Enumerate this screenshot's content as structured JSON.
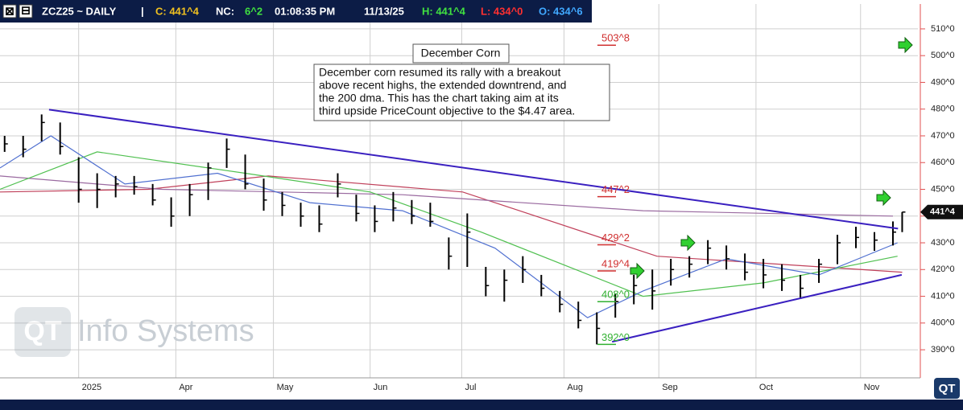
{
  "chart_data": {
    "type": "ohlc",
    "header": [
      {
        "text": "ZCZ25 ~ DAILY",
        "color": "#ffffff"
      },
      {
        "text": "|",
        "color": "#ffffff"
      },
      {
        "text": "C: 441^4",
        "color": "#f0c020"
      },
      {
        "text": "NC:",
        "color": "#ffffff"
      },
      {
        "text": "6^2",
        "color": "#40e040"
      },
      {
        "text": "01:08:35 PM",
        "color": "#ffffff"
      },
      {
        "text": "11/13/25",
        "color": "#ffffff"
      },
      {
        "text": "H: 441^4",
        "color": "#40e040"
      },
      {
        "text": "L: 434^0",
        "color": "#ff3030"
      },
      {
        "text": "O: 434^6",
        "color": "#40a8ff"
      }
    ],
    "annotation": {
      "title": "December Corn",
      "lines": [
        "December corn resumed its rally with a breakout",
        "above recent highs, the extended downtrend, and",
        "the 200 dma.  This has the chart taking aim at its",
        "third upside PriceCount objective to the $4.47 area."
      ]
    },
    "watermark": "Info Systems",
    "x": [
      -16,
      -12,
      -8,
      -4,
      0,
      4,
      8,
      12,
      16,
      20,
      24,
      28,
      32,
      36,
      40,
      44,
      48,
      52,
      56,
      60,
      64,
      68,
      72,
      76,
      80,
      84,
      88,
      92,
      96,
      100,
      104,
      108,
      112,
      116,
      120,
      124,
      128,
      132,
      136,
      140,
      144,
      148,
      152,
      156,
      160,
      164,
      168,
      172,
      176,
      178
    ],
    "high": [
      470,
      470,
      478,
      475,
      462,
      456,
      455,
      455,
      452,
      447,
      452,
      460,
      469,
      463,
      454,
      449,
      445,
      444,
      456,
      448,
      444,
      449,
      446,
      445,
      432,
      441,
      421,
      420,
      425,
      418,
      412,
      408,
      404,
      411,
      418,
      420,
      424,
      425,
      431,
      429,
      426,
      424,
      422,
      418,
      424,
      433,
      436,
      434,
      438,
      441.5
    ],
    "low": [
      464,
      462,
      468,
      463,
      445,
      443,
      447,
      448,
      444,
      436,
      440,
      446,
      458,
      450,
      442,
      440,
      436,
      434,
      447,
      438,
      434,
      438,
      437,
      436,
      420,
      421,
      410,
      408,
      415,
      410,
      404,
      398,
      392,
      402,
      407,
      405,
      414,
      417,
      422,
      420,
      416,
      413,
      412,
      409,
      415,
      422,
      428,
      427,
      429,
      434
    ],
    "close": [
      467,
      465,
      475,
      466,
      450,
      450,
      452,
      451,
      446,
      440,
      448,
      458,
      465,
      452,
      446,
      444,
      440,
      437,
      452,
      441,
      438,
      443,
      440,
      438,
      425,
      434,
      414,
      416,
      420,
      413,
      407,
      401,
      398,
      408,
      414,
      412,
      420,
      422,
      428,
      424,
      419,
      418,
      416,
      413,
      422,
      430,
      432,
      431,
      434,
      441.5
    ],
    "bar_color": "#000000",
    "averages": [
      {
        "color": "#c0405a",
        "x": [
          -17,
          15,
          41,
          83,
          125,
          178
        ],
        "values": [
          449,
          450,
          455,
          449,
          425,
          419
        ]
      },
      {
        "color": "#9a6aa0",
        "x": [
          -17,
          18,
          70,
          122,
          176
        ],
        "values": [
          455,
          450,
          448,
          442,
          440
        ]
      },
      {
        "color": "#50c050",
        "x": [
          -17,
          4,
          36,
          63,
          87,
          122,
          148,
          177
        ],
        "values": [
          450,
          464,
          456,
          449,
          434,
          410,
          415,
          425
        ]
      },
      {
        "color": "#5070d0",
        "x": [
          -17,
          -6,
          10,
          30,
          50,
          70,
          90,
          110,
          122,
          140,
          160,
          177
        ],
        "values": [
          458,
          470,
          452,
          456,
          445,
          442,
          428,
          402,
          412,
          424,
          418,
          430
        ]
      }
    ],
    "trendlines": [
      {
        "color": "#3a20c0",
        "x": [
          -6.4,
          177.1
        ],
        "values": [
          479.8,
          435.3
        ]
      },
      {
        "color": "#3a20c0",
        "x": [
          115.3,
          177.9
        ],
        "values": [
          393,
          418
        ]
      }
    ],
    "levels": [
      {
        "value": 503.875,
        "label": "503^8",
        "color": "#d03030",
        "x": 113
      },
      {
        "value": 447.25,
        "label": "447^2",
        "color": "#d03030",
        "x": 113
      },
      {
        "value": 429.25,
        "label": "429^2",
        "color": "#d03030",
        "x": 113
      },
      {
        "value": 419.5,
        "label": "419^4",
        "color": "#d03030",
        "x": 113
      },
      {
        "value": 408,
        "label": "408^0",
        "color": "#30b030",
        "x": 113
      },
      {
        "value": 392,
        "label": "392^0",
        "color": "#30b030",
        "x": 113
      }
    ],
    "last_price": {
      "value": 441.5,
      "label": "441^4"
    },
    "xlim": [
      -17,
      181.4
    ],
    "xticks": [
      {
        "value": 0,
        "label": "2025"
      },
      {
        "value": 21,
        "label": "Apr"
      },
      {
        "value": 42.1,
        "label": "May"
      },
      {
        "value": 63,
        "label": "Jun"
      },
      {
        "value": 82.8,
        "label": "Jul"
      },
      {
        "value": 104.9,
        "label": "Aug"
      },
      {
        "value": 125.4,
        "label": "Sep"
      },
      {
        "value": 146.4,
        "label": "Oct"
      },
      {
        "value": 169,
        "label": "Nov"
      }
    ],
    "ylim": [
      379.5,
      519.3
    ],
    "yticks": [
      {
        "value": 390,
        "label": "390^0"
      },
      {
        "value": 400,
        "label": "400^0"
      },
      {
        "value": 410,
        "label": "410^0"
      },
      {
        "value": 420,
        "label": "420^0"
      },
      {
        "value": 430,
        "label": "430^0"
      },
      {
        "value": 440,
        "label": "440^0"
      },
      {
        "value": 450,
        "label": "450^0"
      },
      {
        "value": 460,
        "label": "460^0"
      },
      {
        "value": 470,
        "label": "470^0"
      },
      {
        "value": 480,
        "label": "480^0"
      },
      {
        "value": 490,
        "label": "490^0"
      },
      {
        "value": 500,
        "label": "500^0"
      },
      {
        "value": 510,
        "label": "510^0"
      }
    ],
    "grid": true
  }
}
